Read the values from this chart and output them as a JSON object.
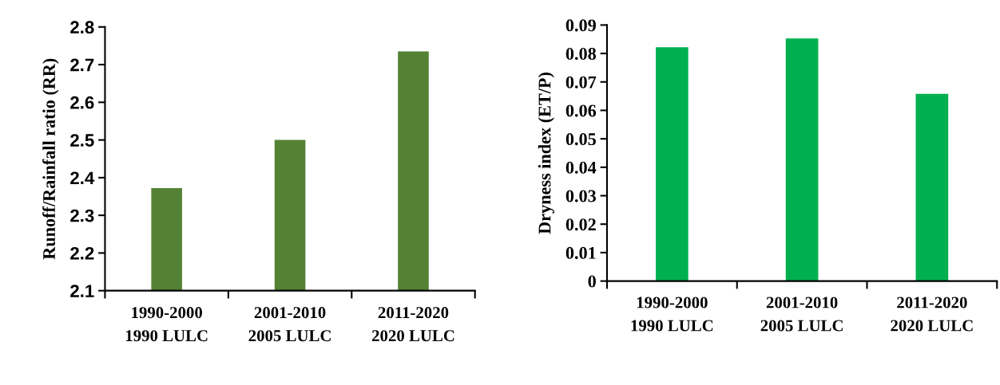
{
  "chart_data": [
    {
      "type": "bar",
      "ylabel": "Runoff/Rainfall ratio (RR)",
      "categories": [
        "1990-2000\n1990 LULC",
        "2001-2010\n2005 LULC",
        "2011-2020\n2020 LULC"
      ],
      "values": [
        2.372,
        2.5,
        2.735
      ],
      "color": "#548235",
      "ylim": [
        2.1,
        2.8
      ],
      "yticks": [
        {
          "value": 2.1,
          "label": "2.1"
        },
        {
          "value": 2.2,
          "label": "2.2"
        },
        {
          "value": 2.3,
          "label": "2.3"
        },
        {
          "value": 2.4,
          "label": "2.4"
        },
        {
          "value": 2.5,
          "label": "2.5"
        },
        {
          "value": 2.6,
          "label": "2.6"
        },
        {
          "value": 2.7,
          "label": "2.7"
        },
        {
          "value": 2.8,
          "label": "2.8"
        }
      ],
      "grid": false,
      "legend": false
    },
    {
      "type": "bar",
      "ylabel": "Dryness index (ET/P)",
      "categories": [
        "1990-2000\n1990 LULC",
        "2001-2010\n2005 LULC",
        "2011-2020\n2020 LULC"
      ],
      "values": [
        0.0822,
        0.0853,
        0.0658
      ],
      "color": "#00b050",
      "ylim": [
        0,
        0.09
      ],
      "yticks": [
        0,
        0.01,
        0.02,
        0.03,
        0.04,
        0.05,
        0.06,
        0.07,
        0.08,
        0.09
      ],
      "grid": false,
      "legend": false
    }
  ]
}
